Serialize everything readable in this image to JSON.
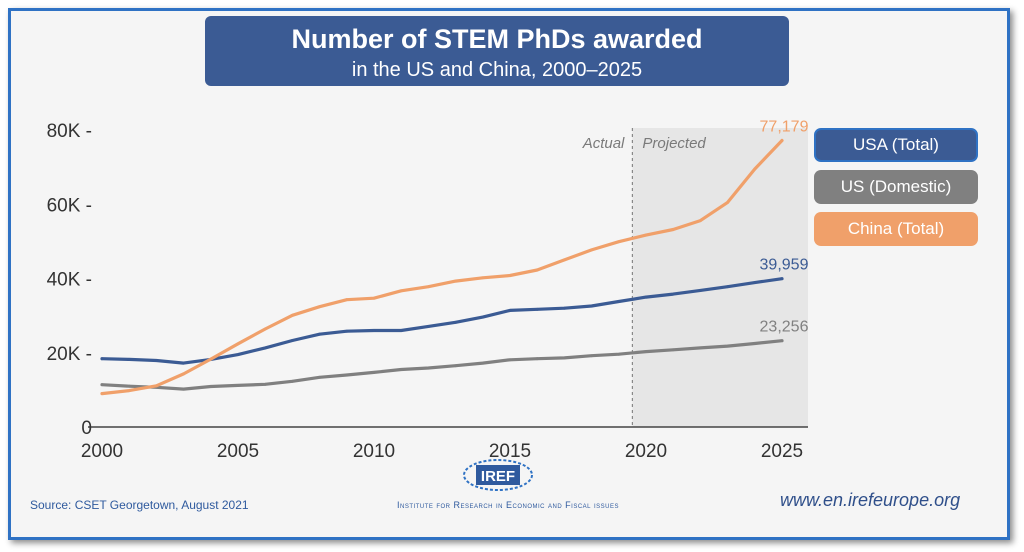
{
  "header": {
    "title": "Number of STEM PhDs awarded",
    "subtitle": "in the US and China, 2000–2025"
  },
  "footer": {
    "source": "Source: CSET Georgetown, August 2021",
    "website": "www.en.irefeurope.org",
    "logo_text": "IREF",
    "institute": "Institute for Research in Economic and Fiscal issues"
  },
  "chart_data": {
    "type": "line",
    "title": "Number of STEM PhDs awarded",
    "subtitle": "in the US and China, 2000–2025",
    "xlim": [
      2000,
      2025
    ],
    "ylim": [
      0,
      80000
    ],
    "x_ticks": [
      2000,
      2005,
      2010,
      2015,
      2020,
      2025
    ],
    "x_tick_labels": [
      "2000",
      "2005",
      "2010",
      "2015",
      "2020",
      "2025"
    ],
    "y_ticks": [
      0,
      20000,
      40000,
      60000,
      80000
    ],
    "y_tick_labels": [
      "0",
      "20K -",
      "40K -",
      "60K -",
      "80K -"
    ],
    "grid": false,
    "legend_position": "right",
    "annotations": {
      "divider_year": 2019.5,
      "actual_label": "Actual",
      "projected_label": "Projected"
    },
    "series": [
      {
        "name": "USA (Total)",
        "color": "#3b5b94",
        "x": [
          2000,
          2001,
          2002,
          2003,
          2004,
          2005,
          2006,
          2007,
          2008,
          2009,
          2010,
          2011,
          2012,
          2013,
          2014,
          2015,
          2016,
          2017,
          2018,
          2019,
          2020,
          2021,
          2022,
          2023,
          2024,
          2025
        ],
        "y": [
          18400,
          18200,
          17900,
          17200,
          18200,
          19500,
          21300,
          23300,
          25000,
          25800,
          26000,
          26000,
          27100,
          28200,
          29600,
          31400,
          31700,
          32000,
          32600,
          33800,
          35000,
          35800,
          36800,
          37800,
          38900,
          39959
        ],
        "end_label": "39,959"
      },
      {
        "name": "US (Domestic)",
        "color": "#808080",
        "x": [
          2000,
          2001,
          2002,
          2003,
          2004,
          2005,
          2006,
          2007,
          2008,
          2009,
          2010,
          2011,
          2012,
          2013,
          2014,
          2015,
          2016,
          2017,
          2018,
          2019,
          2020,
          2021,
          2022,
          2023,
          2024,
          2025
        ],
        "y": [
          11400,
          11000,
          10700,
          10200,
          10900,
          11200,
          11500,
          12300,
          13400,
          14000,
          14700,
          15500,
          15900,
          16500,
          17200,
          18100,
          18400,
          18600,
          19200,
          19600,
          20300,
          20800,
          21300,
          21800,
          22500,
          23256
        ],
        "end_label": "23,256"
      },
      {
        "name": "China (Total)",
        "color": "#f0a06a",
        "x": [
          2000,
          2001,
          2002,
          2003,
          2004,
          2005,
          2006,
          2007,
          2008,
          2009,
          2010,
          2011,
          2012,
          2013,
          2014,
          2015,
          2016,
          2017,
          2018,
          2019,
          2020,
          2021,
          2022,
          2023,
          2024,
          2025
        ],
        "y": [
          9000,
          9800,
          11100,
          14300,
          18300,
          22400,
          26400,
          30100,
          32400,
          34300,
          34700,
          36700,
          37800,
          39300,
          40200,
          40800,
          42300,
          45000,
          47700,
          49900,
          51700,
          53200,
          55600,
          60500,
          69500,
          77179
        ],
        "end_label": "77,179"
      }
    ]
  }
}
